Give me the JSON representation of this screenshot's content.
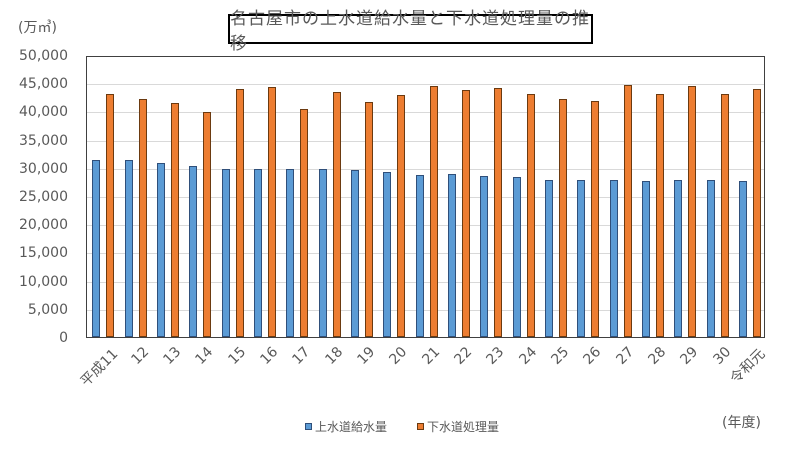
{
  "chart": {
    "title": "名古屋市の上水道給水量と下水道処理量の推移",
    "y_unit": "(万㎥)",
    "x_unit": "(年度)",
    "colors": {
      "water_supply": "#5b9bd5",
      "sewage": "#ed7d31"
    }
  },
  "chart_data": {
    "type": "bar",
    "title": "名古屋市の上水道給水量と下水道処理量の推移",
    "xlabel": "(年度)",
    "ylabel": "(万㎥)",
    "ylim": [
      0,
      50000
    ],
    "yticks": [
      0,
      5000,
      10000,
      15000,
      20000,
      25000,
      30000,
      35000,
      40000,
      45000,
      50000
    ],
    "ytick_labels": [
      "0",
      "5,000",
      "10,000",
      "15,000",
      "20,000",
      "25,000",
      "30,000",
      "35,000",
      "40,000",
      "45,000",
      "50,000"
    ],
    "grid": true,
    "legend_position": "bottom",
    "categories": [
      "平成11",
      "12",
      "13",
      "14",
      "15",
      "16",
      "17",
      "18",
      "19",
      "20",
      "21",
      "22",
      "23",
      "24",
      "25",
      "26",
      "27",
      "28",
      "29",
      "30",
      "令和元"
    ],
    "series": [
      {
        "name": "上水道給水量",
        "color": "#5b9bd5",
        "values": [
          31300,
          31300,
          30800,
          30300,
          29800,
          29800,
          29800,
          29800,
          29700,
          29200,
          28800,
          28900,
          28600,
          28300,
          27900,
          27800,
          27800,
          27600,
          27800,
          27800,
          27600
        ]
      },
      {
        "name": "下水道処理量",
        "color": "#ed7d31",
        "values": [
          43100,
          42200,
          41500,
          39900,
          44000,
          44300,
          40400,
          43400,
          41700,
          42900,
          44500,
          43800,
          44100,
          43100,
          42200,
          41900,
          44700,
          43100,
          44500,
          43100,
          44000
        ]
      }
    ]
  }
}
